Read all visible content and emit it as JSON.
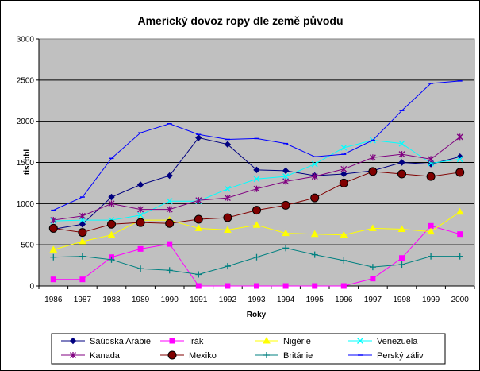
{
  "chart_data": {
    "type": "line",
    "title": "Americký dovoz ropy dle země původu",
    "xlabel": "Roky",
    "ylabel": "tis. bbl",
    "ylim": [
      0,
      3000
    ],
    "yticks": [
      "0",
      "500",
      "1000",
      "1500",
      "2000",
      "2500",
      "3000"
    ],
    "x": [
      "1986",
      "1987",
      "1988",
      "1989",
      "1990",
      "1991",
      "1992",
      "1993",
      "1994",
      "1995",
      "1996",
      "1997",
      "1998",
      "1999",
      "2000"
    ],
    "grid": true,
    "legend_position": "bottom",
    "series": [
      {
        "name": "Saúdská Arábie",
        "color": "#000080",
        "marker": "diamond",
        "values": [
          690,
          750,
          1080,
          1230,
          1340,
          1800,
          1720,
          1410,
          1400,
          1340,
          1360,
          1400,
          1500,
          1480,
          1570
        ]
      },
      {
        "name": "Irák",
        "color": "#FF00FF",
        "marker": "square",
        "values": [
          80,
          80,
          350,
          450,
          510,
          0,
          0,
          0,
          0,
          0,
          0,
          90,
          340,
          730,
          630
        ]
      },
      {
        "name": "Nigérie",
        "color": "#FFFF00",
        "marker": "triangle",
        "values": [
          440,
          540,
          620,
          800,
          800,
          700,
          680,
          740,
          640,
          630,
          620,
          700,
          690,
          660,
          900
        ]
      },
      {
        "name": "Venezuela",
        "color": "#00FFFF",
        "marker": "x",
        "values": [
          790,
          800,
          800,
          860,
          1030,
          1030,
          1180,
          1300,
          1330,
          1480,
          1680,
          1770,
          1730,
          1490,
          1540
        ]
      },
      {
        "name": "Kanada",
        "color": "#800080",
        "marker": "star",
        "values": [
          800,
          850,
          1000,
          930,
          930,
          1040,
          1070,
          1180,
          1270,
          1330,
          1420,
          1560,
          1600,
          1540,
          1810
        ]
      },
      {
        "name": "Mexiko",
        "color": "#800000",
        "marker": "circle",
        "values": [
          700,
          650,
          750,
          770,
          760,
          810,
          830,
          920,
          980,
          1070,
          1250,
          1390,
          1360,
          1330,
          1380
        ]
      },
      {
        "name": "Británie",
        "color": "#008080",
        "marker": "plus",
        "values": [
          350,
          360,
          320,
          210,
          190,
          140,
          240,
          350,
          460,
          380,
          310,
          230,
          260,
          360,
          360
        ]
      },
      {
        "name": "Perský záliv",
        "color": "#0000FF",
        "marker": "bar",
        "values": [
          920,
          1080,
          1550,
          1860,
          1970,
          1840,
          1780,
          1790,
          1730,
          1570,
          1600,
          1770,
          2130,
          2460,
          2490
        ]
      }
    ]
  }
}
